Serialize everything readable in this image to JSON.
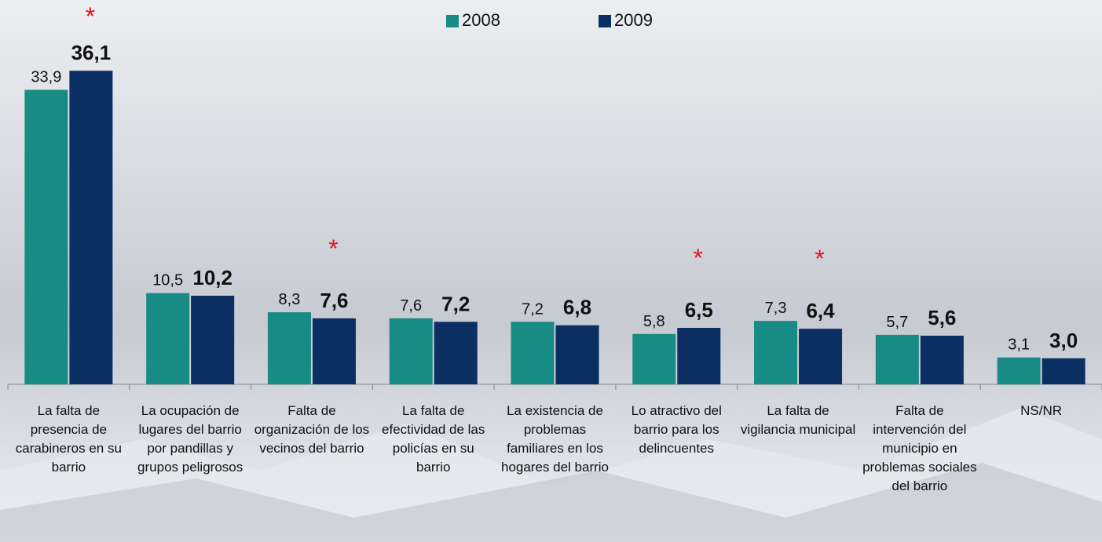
{
  "chart_data": {
    "type": "bar",
    "categories": [
      "La falta de presencia de carabineros en su barrio",
      "La ocupación de lugares del barrio por pandillas y grupos peligrosos",
      "Falta de organización de los vecinos del barrio",
      "La falta de efectividad de las policías en su barrio",
      "La existencia de problemas familiares en los hogares del barrio",
      "Lo atractivo del barrio para los delincuentes",
      "La falta de vigilancia municipal",
      "Falta de intervención del municipio en problemas sociales del barrio",
      "NS/NR"
    ],
    "series": [
      {
        "name": "2008",
        "color": "#178b84",
        "values": [
          33.9,
          10.5,
          8.3,
          7.6,
          7.2,
          5.8,
          7.3,
          5.7,
          3.1
        ],
        "value_labels": [
          "33,9",
          "10,5",
          "8,3",
          "7,6",
          "7,2",
          "5,8",
          "7,3",
          "5,7",
          "3,1"
        ]
      },
      {
        "name": "2009",
        "color": "#0b2f62",
        "values": [
          36.1,
          10.2,
          7.6,
          7.2,
          6.8,
          6.5,
          6.4,
          5.6,
          3.0
        ],
        "value_labels": [
          "36,1",
          "10,2",
          "7,6",
          "7,2",
          "6,8",
          "6,5",
          "6,4",
          "5,6",
          "3,0"
        ]
      }
    ],
    "significance": [
      "*",
      null,
      "*",
      null,
      null,
      "*",
      "*",
      null,
      null
    ],
    "ylim": [
      0,
      40
    ]
  }
}
